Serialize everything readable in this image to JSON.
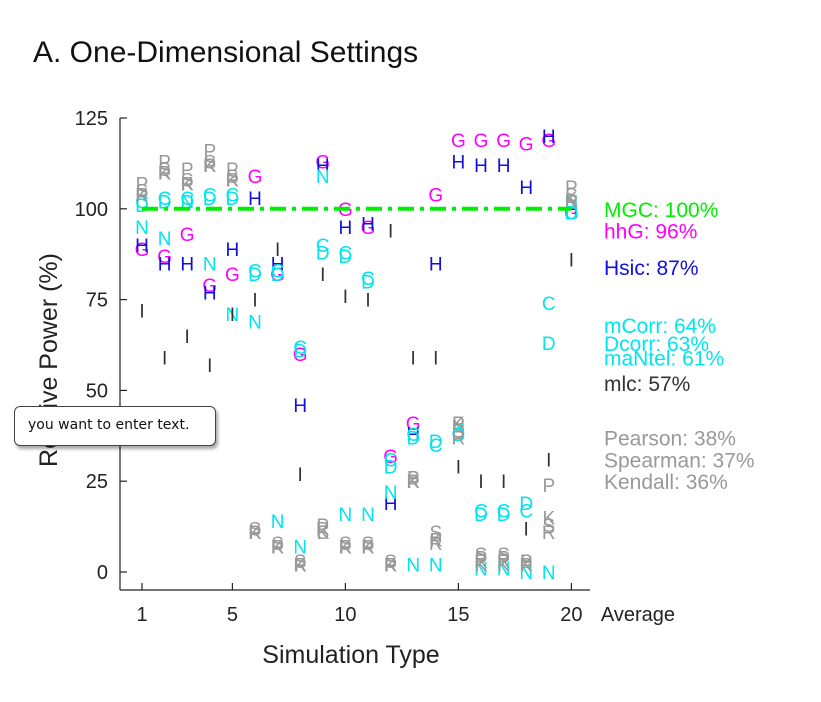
{
  "tooltip": {
    "text": "you want to enter text."
  },
  "chart_data": {
    "type": "scatter",
    "title": "A. One-Dimensional Settings",
    "xlabel": "Simulation Type",
    "ylabel": "Relative Power (%)",
    "xlim": [
      0,
      21
    ],
    "ylim": [
      -5,
      125
    ],
    "x_ticks": [
      1,
      5,
      10,
      15,
      20
    ],
    "y_ticks": [
      0,
      25,
      50,
      75,
      100,
      125
    ],
    "x_extra_label": "Average",
    "reference_line": {
      "series": "MGC",
      "y": 100,
      "x_range": [
        1,
        20
      ],
      "style": "dash-dot",
      "color": "#00ee00"
    },
    "series": [
      {
        "name": "MGC",
        "marker": "",
        "color": "#00ee00",
        "average": "MGC: 100%",
        "label_y": 100,
        "points": []
      },
      {
        "name": "hhG",
        "marker": "G",
        "color": "#ff00ff",
        "average": "hhG: 96%",
        "label_y": 94,
        "points": [
          [
            1,
            89
          ],
          [
            2,
            87
          ],
          [
            3,
            93
          ],
          [
            4,
            79
          ],
          [
            5,
            82
          ],
          [
            6,
            109
          ],
          [
            7,
            82
          ],
          [
            8,
            60
          ],
          [
            9,
            113
          ],
          [
            10,
            100
          ],
          [
            11,
            95
          ],
          [
            12,
            32
          ],
          [
            13,
            41
          ],
          [
            14,
            104
          ],
          [
            15,
            119
          ],
          [
            16,
            119
          ],
          [
            17,
            119
          ],
          [
            18,
            118
          ],
          [
            19,
            119
          ],
          [
            20,
            99
          ]
        ]
      },
      {
        "name": "Hsic",
        "marker": "H",
        "color": "#1010dd",
        "average": "Hsic: 87%",
        "label_y": 84,
        "points": [
          [
            1,
            90
          ],
          [
            2,
            85
          ],
          [
            3,
            85
          ],
          [
            4,
            77
          ],
          [
            5,
            89
          ],
          [
            6,
            103
          ],
          [
            7,
            85
          ],
          [
            8,
            46
          ],
          [
            9,
            112
          ],
          [
            10,
            95
          ],
          [
            11,
            96
          ],
          [
            12,
            19
          ],
          [
            13,
            38
          ],
          [
            14,
            85
          ],
          [
            15,
            113
          ],
          [
            16,
            112
          ],
          [
            17,
            112
          ],
          [
            18,
            106
          ],
          [
            19,
            120
          ],
          [
            20,
            100
          ]
        ]
      },
      {
        "name": "mCorr",
        "marker": "C",
        "color": "#00e5ee",
        "average": "mCorr: 64%",
        "label_y": 68,
        "points": []
      },
      {
        "name": "Dcorr",
        "marker": "D",
        "color": "#00e5ee",
        "average": "Dcorr: 63%",
        "label_y": 63,
        "points": []
      },
      {
        "name": "maNtel",
        "marker": "N",
        "color": "#00e5ee",
        "average": "maNtel: 61%",
        "label_y": 59,
        "points": []
      },
      {
        "name": "mlc",
        "marker": "I",
        "color": "#333333",
        "average": "mlc: 57%",
        "label_y": 52,
        "points": []
      },
      {
        "name": "Pearson",
        "marker": "P",
        "color": "#999999",
        "average": "Pearson: 38%",
        "label_y": 37,
        "points": []
      },
      {
        "name": "Spearman",
        "marker": "S",
        "color": "#999999",
        "average": "Spearman: 37%",
        "label_y": 31,
        "points": []
      },
      {
        "name": "Kendall",
        "marker": "K",
        "color": "#999999",
        "average": "Kendall: 36%",
        "label_y": 25,
        "points": []
      }
    ],
    "marks": [
      {
        "m": "C",
        "c": "#00e5ee",
        "p": [
          [
            1,
            102
          ],
          [
            2,
            103
          ],
          [
            3,
            103
          ],
          [
            4,
            104
          ],
          [
            5,
            104
          ],
          [
            6,
            83
          ],
          [
            7,
            83
          ],
          [
            8,
            62
          ],
          [
            9,
            90
          ],
          [
            10,
            88
          ],
          [
            11,
            81
          ],
          [
            12,
            31
          ],
          [
            13,
            38
          ],
          [
            14,
            35
          ],
          [
            15,
            38
          ],
          [
            16,
            17
          ],
          [
            17,
            17
          ],
          [
            18,
            17
          ],
          [
            19,
            74
          ],
          [
            20,
            99
          ]
        ]
      },
      {
        "m": "D",
        "c": "#00e5ee",
        "p": [
          [
            1,
            101
          ],
          [
            2,
            102
          ],
          [
            3,
            102
          ],
          [
            4,
            103
          ],
          [
            5,
            103
          ],
          [
            6,
            82
          ],
          [
            7,
            82
          ],
          [
            8,
            61
          ],
          [
            9,
            88
          ],
          [
            10,
            87
          ],
          [
            11,
            80
          ],
          [
            12,
            29
          ],
          [
            13,
            37
          ],
          [
            14,
            36
          ],
          [
            15,
            38
          ],
          [
            16,
            16
          ],
          [
            17,
            16
          ],
          [
            18,
            19
          ],
          [
            19,
            63
          ],
          [
            20,
            99
          ]
        ]
      },
      {
        "m": "N",
        "c": "#00e5ee",
        "p": [
          [
            1,
            95
          ],
          [
            2,
            92
          ],
          [
            3,
            102
          ],
          [
            4,
            85
          ],
          [
            5,
            71
          ],
          [
            6,
            69
          ],
          [
            7,
            14
          ],
          [
            8,
            7
          ],
          [
            9,
            109
          ],
          [
            10,
            16
          ],
          [
            11,
            16
          ],
          [
            12,
            22
          ],
          [
            13,
            2
          ],
          [
            14,
            2
          ],
          [
            15,
            40
          ],
          [
            16,
            1
          ],
          [
            17,
            1
          ],
          [
            18,
            0
          ],
          [
            19,
            0
          ],
          [
            20,
            102
          ]
        ]
      },
      {
        "m": "I",
        "c": "#333333",
        "p": [
          [
            1,
            72
          ],
          [
            2,
            59
          ],
          [
            3,
            65
          ],
          [
            4,
            57
          ],
          [
            5,
            71
          ],
          [
            6,
            75
          ],
          [
            7,
            89
          ],
          [
            8,
            27
          ],
          [
            9,
            82
          ],
          [
            10,
            76
          ],
          [
            11,
            75
          ],
          [
            12,
            94
          ],
          [
            13,
            59
          ],
          [
            14,
            59
          ],
          [
            15,
            29
          ],
          [
            16,
            25
          ],
          [
            17,
            25
          ],
          [
            18,
            12
          ],
          [
            19,
            31
          ],
          [
            20,
            86
          ]
        ]
      },
      {
        "m": "P",
        "c": "#999999",
        "p": [
          [
            1,
            107
          ],
          [
            2,
            113
          ],
          [
            3,
            111
          ],
          [
            4,
            116
          ],
          [
            5,
            111
          ],
          [
            6,
            11
          ],
          [
            7,
            7
          ],
          [
            8,
            2
          ],
          [
            9,
            13
          ],
          [
            10,
            7
          ],
          [
            11,
            7
          ],
          [
            12,
            2
          ],
          [
            13,
            26
          ],
          [
            14,
            9
          ],
          [
            15,
            41
          ],
          [
            16,
            4
          ],
          [
            17,
            4
          ],
          [
            18,
            3
          ],
          [
            19,
            24
          ],
          [
            20,
            106
          ]
        ]
      },
      {
        "m": "R",
        "c": "#999999",
        "p": [
          [
            1,
            104
          ],
          [
            2,
            110
          ],
          [
            3,
            107
          ],
          [
            4,
            112
          ],
          [
            5,
            108
          ],
          [
            6,
            11
          ],
          [
            7,
            7
          ],
          [
            8,
            2
          ],
          [
            9,
            12
          ],
          [
            10,
            7
          ],
          [
            11,
            7
          ],
          [
            12,
            2
          ],
          [
            13,
            25
          ],
          [
            14,
            8
          ],
          [
            15,
            37
          ],
          [
            16,
            3
          ],
          [
            17,
            3
          ],
          [
            18,
            2
          ],
          [
            19,
            11
          ],
          [
            20,
            102
          ]
        ]
      },
      {
        "m": "S",
        "c": "#999999",
        "p": [
          [
            1,
            105
          ],
          [
            2,
            111
          ],
          [
            3,
            108
          ],
          [
            4,
            113
          ],
          [
            5,
            109
          ],
          [
            6,
            12
          ],
          [
            7,
            8
          ],
          [
            8,
            3
          ],
          [
            9,
            11
          ],
          [
            10,
            8
          ],
          [
            11,
            8
          ],
          [
            12,
            3
          ],
          [
            13,
            26
          ],
          [
            14,
            11
          ],
          [
            15,
            39
          ],
          [
            16,
            5
          ],
          [
            17,
            5
          ],
          [
            18,
            3
          ],
          [
            19,
            13
          ],
          [
            20,
            104
          ]
        ]
      },
      {
        "m": "K",
        "c": "#999999",
        "p": [
          [
            1,
            104
          ],
          [
            2,
            110
          ],
          [
            3,
            107
          ],
          [
            4,
            112
          ],
          [
            5,
            108
          ],
          [
            6,
            11
          ],
          [
            7,
            7
          ],
          [
            8,
            2
          ],
          [
            9,
            11
          ],
          [
            10,
            7
          ],
          [
            11,
            7
          ],
          [
            12,
            2
          ],
          [
            13,
            25
          ],
          [
            14,
            9
          ],
          [
            15,
            41
          ],
          [
            16,
            2
          ],
          [
            17,
            2
          ],
          [
            18,
            2
          ],
          [
            19,
            15
          ],
          [
            20,
            103
          ]
        ]
      }
    ]
  }
}
